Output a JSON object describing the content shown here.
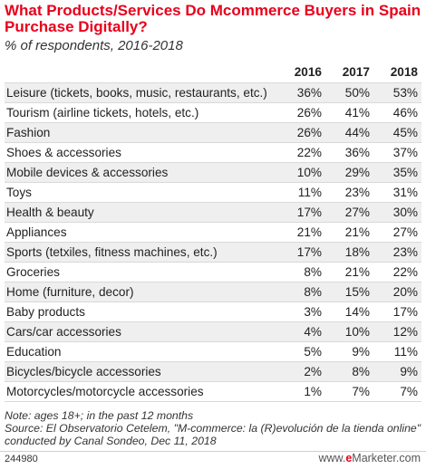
{
  "title": "What Products/Services Do Mcommerce Buyers in Spain Purchase Digitally?",
  "subtitle": "% of respondents, 2016-2018",
  "chart_data": {
    "type": "table",
    "columns": [
      "2016",
      "2017",
      "2018"
    ],
    "rows": [
      {
        "label": "Leisure (tickets, books, music, restaurants, etc.)",
        "values": [
          "36%",
          "50%",
          "53%"
        ]
      },
      {
        "label": "Tourism (airline tickets, hotels, etc.)",
        "values": [
          "26%",
          "41%",
          "46%"
        ]
      },
      {
        "label": "Fashion",
        "values": [
          "26%",
          "44%",
          "45%"
        ]
      },
      {
        "label": "Shoes & accessories",
        "values": [
          "22%",
          "36%",
          "37%"
        ]
      },
      {
        "label": "Mobile devices & accessories",
        "values": [
          "10%",
          "29%",
          "35%"
        ]
      },
      {
        "label": "Toys",
        "values": [
          "11%",
          "23%",
          "31%"
        ]
      },
      {
        "label": "Health & beauty",
        "values": [
          "17%",
          "27%",
          "30%"
        ]
      },
      {
        "label": "Appliances",
        "values": [
          "21%",
          "21%",
          "27%"
        ]
      },
      {
        "label": "Sports (tetxiles, fitness machines, etc.)",
        "values": [
          "17%",
          "18%",
          "23%"
        ]
      },
      {
        "label": "Groceries",
        "values": [
          "8%",
          "21%",
          "22%"
        ]
      },
      {
        "label": "Home (furniture, decor)",
        "values": [
          "8%",
          "15%",
          "20%"
        ]
      },
      {
        "label": "Baby products",
        "values": [
          "3%",
          "14%",
          "17%"
        ]
      },
      {
        "label": "Cars/car accessories",
        "values": [
          "4%",
          "10%",
          "12%"
        ]
      },
      {
        "label": "Education",
        "values": [
          "5%",
          "9%",
          "11%"
        ]
      },
      {
        "label": "Bicycles/bicycle accessories",
        "values": [
          "2%",
          "8%",
          "9%"
        ]
      },
      {
        "label": "Motorcycles/motorcycle accessories",
        "values": [
          "1%",
          "7%",
          "7%"
        ]
      }
    ]
  },
  "note_line1": "Note: ages 18+; in the past 12 months",
  "note_line2": "Source: El Observatorio Cetelem, \"M-commerce: la (R)evolución de la tienda online\" conducted by Canal Sondeo, Dec 11, 2018",
  "footer": {
    "id": "244980",
    "brand_prefix": "www.",
    "brand_accent": "e",
    "brand_suffix": "Marketer.com"
  },
  "colors": {
    "title": "#e8001c",
    "stripe": "#efefef"
  }
}
